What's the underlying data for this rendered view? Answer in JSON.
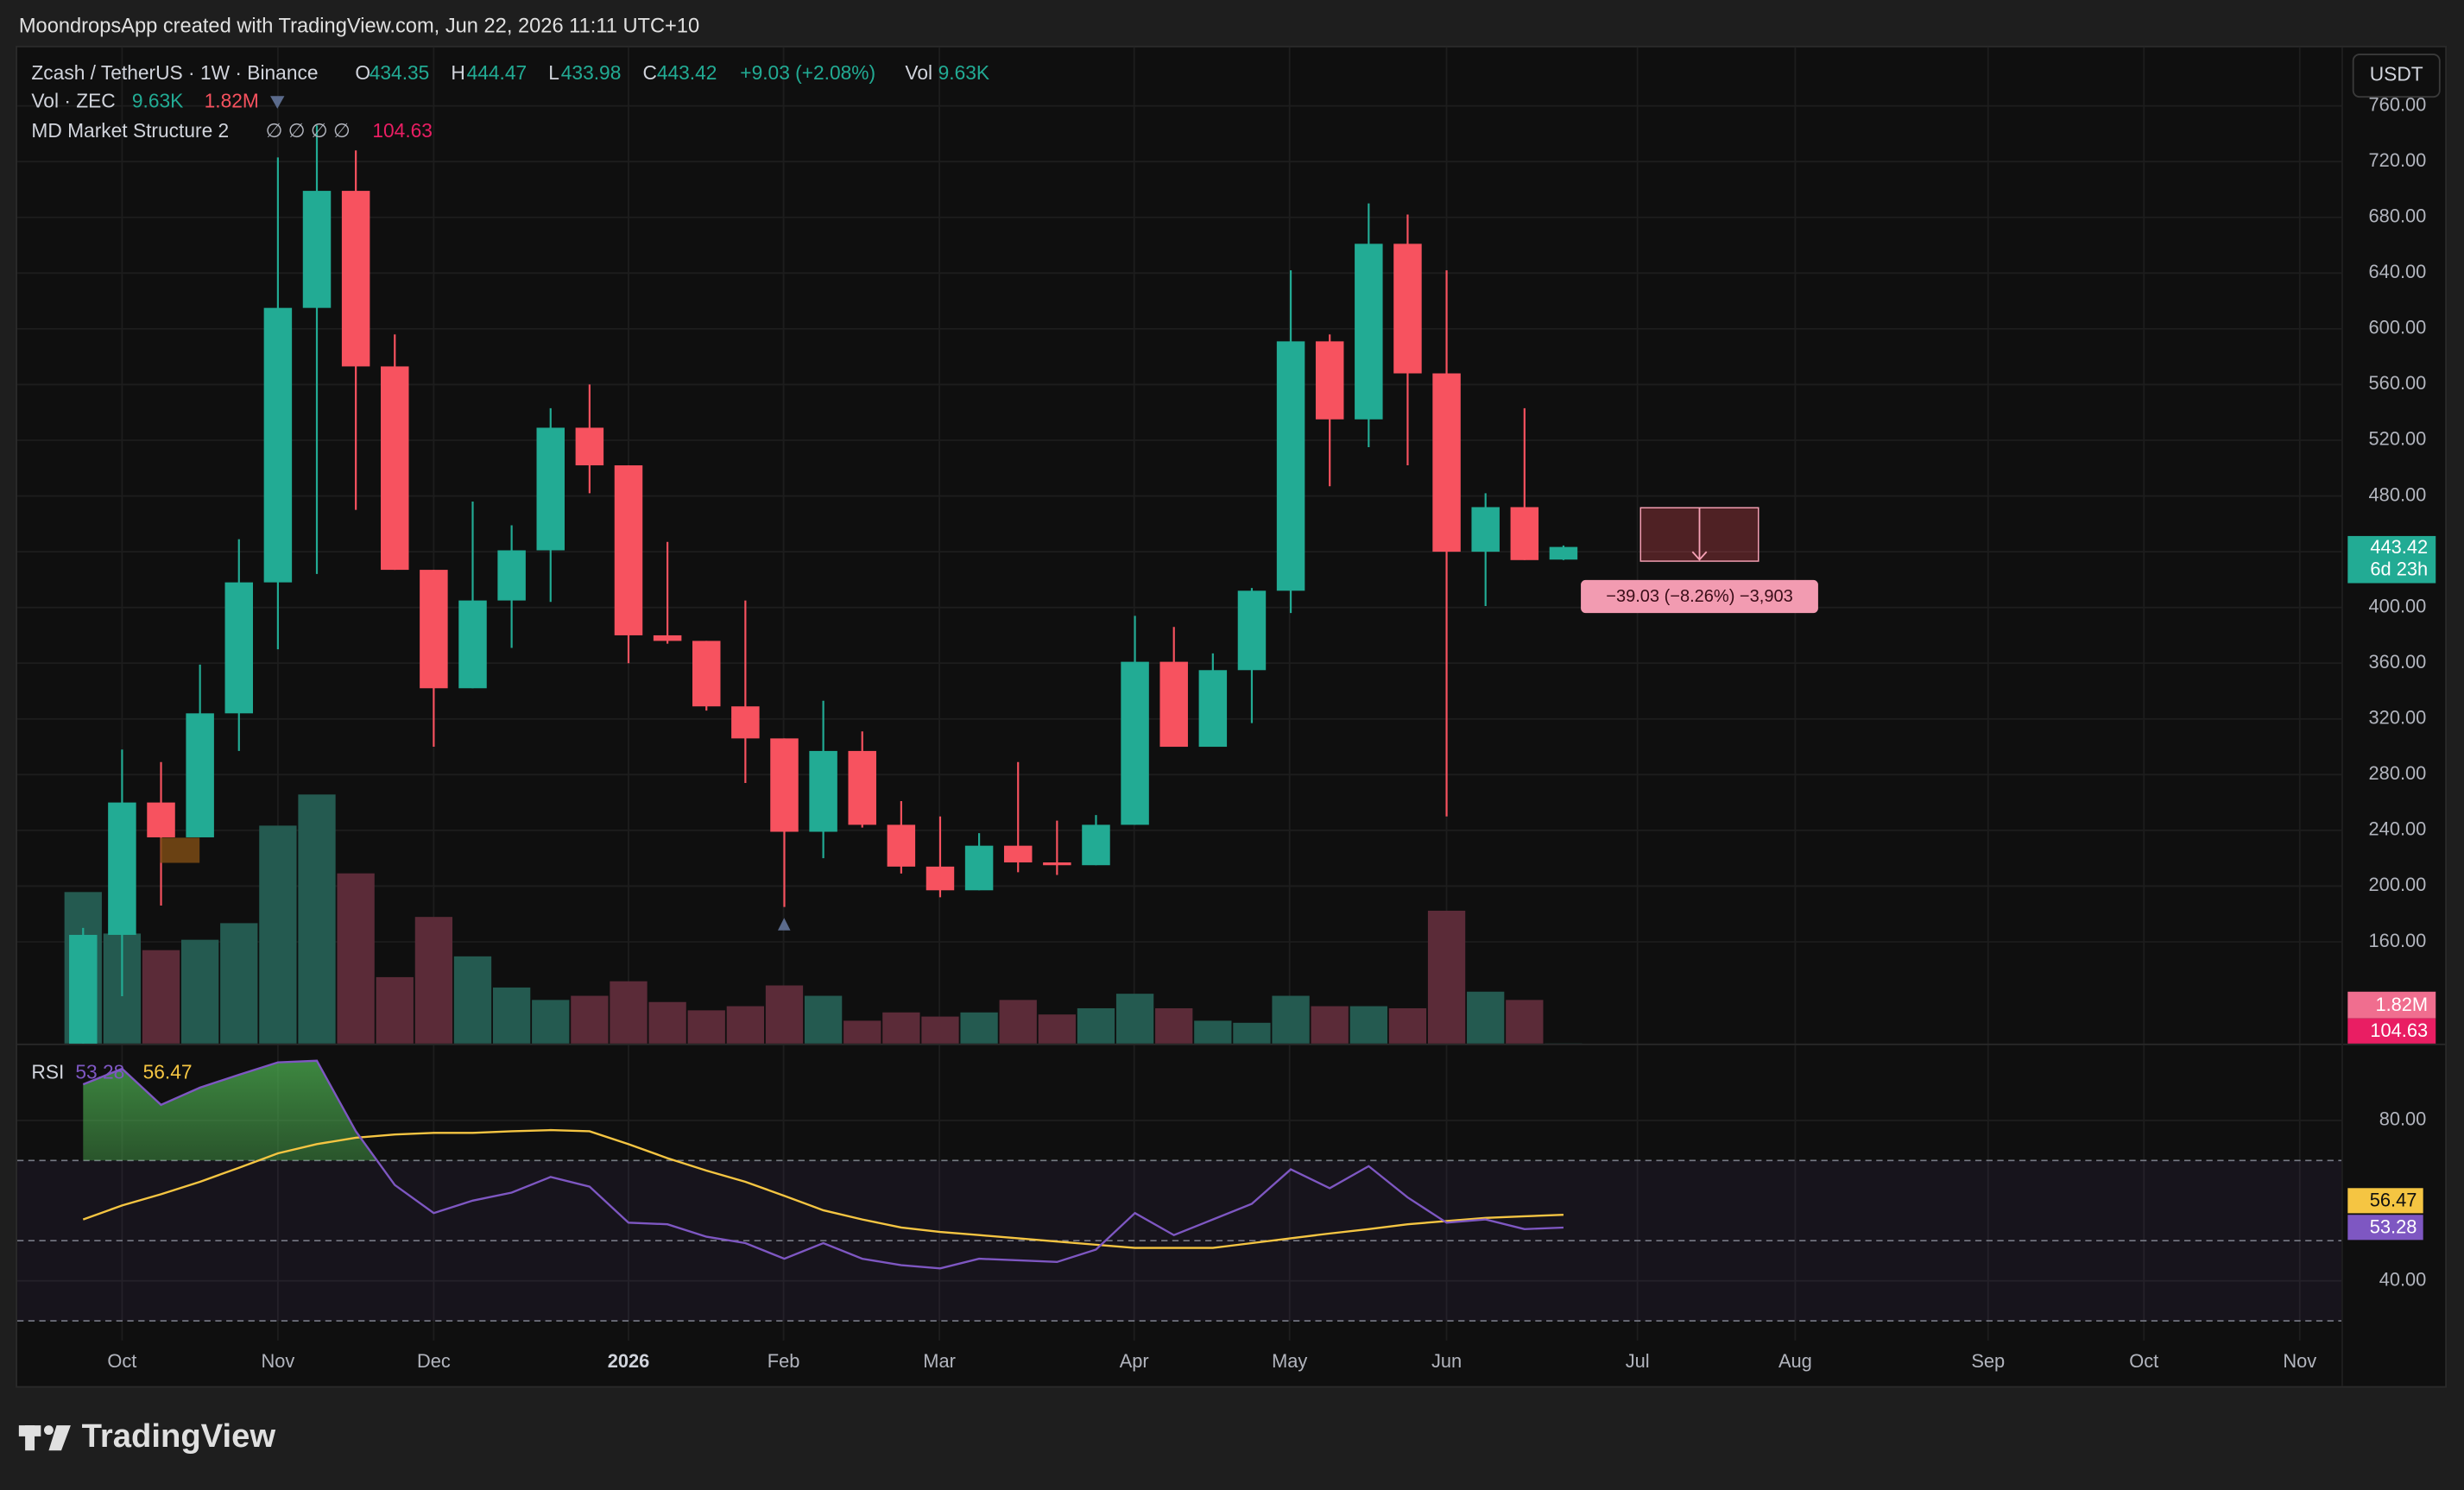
{
  "title_bar": "MoondropsApp created with TradingView.com, Jun 22, 2026 11:11 UTC+10",
  "brand": "TradingView",
  "currency_button": "USDT",
  "legend": {
    "symbol": "Zcash / TetherUS · 1W · Binance",
    "open_key": "O",
    "high_key": "H",
    "low_key": "L",
    "close_key": "C",
    "change": "+9.03 (+2.08%)",
    "volume_key": "Vol",
    "volume_value": "9.63K"
  },
  "volume_legend": {
    "name": "Vol · ZEC",
    "value": "9.63K",
    "ma_value": "1.82M"
  },
  "structure_legend": {
    "name": "MD Market Structure 2",
    "placeholders": "∅ ∅ ∅ ∅",
    "value": "104.63"
  },
  "countdown": "6d 23h",
  "measure_label": "−39.03 (−8.26%) −3,903",
  "chart_data": {
    "type": "candlestick",
    "up_color": "#22ab94",
    "down_color": "#f7525f",
    "volume_up_color": "#245a50",
    "volume_down_color": "#5b2b38",
    "open": [
      85,
      165,
      260,
      235,
      324,
      418,
      615,
      699,
      573,
      427,
      342,
      405,
      441,
      529,
      502,
      380,
      376,
      329,
      306,
      239,
      297,
      244,
      214,
      197,
      229,
      217,
      215,
      244,
      361,
      300,
      355,
      412,
      591,
      535,
      661,
      568,
      440,
      472,
      434.35
    ],
    "high": [
      170,
      298,
      289,
      359,
      449,
      723,
      746,
      728,
      596,
      427,
      476,
      459,
      543,
      560,
      502,
      447,
      376,
      405,
      306,
      333,
      311,
      261,
      250,
      238,
      289,
      247,
      251,
      394,
      386,
      367,
      414,
      642,
      596,
      690,
      682,
      642,
      482,
      543,
      444.47
    ],
    "low": [
      80,
      121,
      186,
      235,
      297,
      370,
      424,
      470,
      427,
      300,
      342,
      371,
      404,
      482,
      360,
      374,
      326,
      274,
      185,
      220,
      242,
      209,
      192,
      197,
      210,
      208,
      215,
      244,
      300,
      300,
      317,
      396,
      487,
      515,
      502,
      250,
      401,
      434,
      433.98
    ],
    "close": [
      165,
      260,
      235,
      324,
      418,
      615,
      699,
      573,
      427,
      342,
      405,
      441,
      529,
      502,
      380,
      376,
      329,
      306,
      239,
      297,
      244,
      214,
      197,
      229,
      217,
      215,
      244,
      361,
      300,
      355,
      412,
      591,
      535,
      661,
      568,
      440,
      472,
      434,
      443.42
    ],
    "volume": [
      7.3,
      5.3,
      4.5,
      5.0,
      5.8,
      10.5,
      12.0,
      8.2,
      3.2,
      6.1,
      4.2,
      2.7,
      2.1,
      2.3,
      3.0,
      2.0,
      1.6,
      1.8,
      2.8,
      2.3,
      1.1,
      1.5,
      1.3,
      1.5,
      2.1,
      1.4,
      1.7,
      2.4,
      1.7,
      1.1,
      1.0,
      2.3,
      1.8,
      1.8,
      1.7,
      6.4,
      2.5,
      2.1,
      0.00963
    ],
    "volume_ylim": [
      0,
      48
    ],
    "ylim": [
      87,
      802
    ],
    "yticks": [
      {
        "value": 160,
        "label": "160.00"
      },
      {
        "value": 200,
        "label": "200.00"
      },
      {
        "value": 240,
        "label": "240.00"
      },
      {
        "value": 280,
        "label": "280.00"
      },
      {
        "value": 320,
        "label": "320.00"
      },
      {
        "value": 360,
        "label": "360.00"
      },
      {
        "value": 400,
        "label": "400.00"
      },
      {
        "value": 440,
        "label": "440.00"
      },
      {
        "value": 480,
        "label": "480.00"
      },
      {
        "value": 520,
        "label": "520.00"
      },
      {
        "value": 560,
        "label": "560.00"
      },
      {
        "value": 600,
        "label": "600.00"
      },
      {
        "value": 640,
        "label": "640.00"
      },
      {
        "value": 680,
        "label": "680.00"
      },
      {
        "value": 720,
        "label": "720.00"
      },
      {
        "value": 760,
        "label": "760.00"
      }
    ],
    "xlim": [
      -1.69,
      57.97
    ],
    "xticks": [
      {
        "value": 1.0,
        "label": "Oct"
      },
      {
        "value": 5.0,
        "label": "Nov"
      },
      {
        "value": 9.0,
        "label": "Dec"
      },
      {
        "value": 14.0,
        "label": "2026"
      },
      {
        "value": 17.98,
        "label": "Feb"
      },
      {
        "value": 21.98,
        "label": "Mar"
      },
      {
        "value": 26.98,
        "label": "Apr"
      },
      {
        "value": 30.97,
        "label": "May"
      },
      {
        "value": 35.0,
        "label": "Jun"
      },
      {
        "value": 39.9,
        "label": "Jul"
      },
      {
        "value": 43.95,
        "label": "Aug"
      },
      {
        "value": 48.9,
        "label": "Sep"
      },
      {
        "value": 52.9,
        "label": "Oct"
      },
      {
        "value": 56.9,
        "label": "Nov"
      }
    ],
    "grid": true,
    "rsi": {
      "name": "RSI",
      "color": "#7e57c2",
      "ma_color": "#f5c542",
      "band_color": "#7e57c2",
      "values": [
        89.0,
        92.9,
        83.9,
        88.2,
        91.4,
        94.5,
        94.9,
        77.3,
        63.9,
        56.9,
        60.0,
        62.0,
        65.9,
        63.5,
        54.5,
        54.1,
        51.0,
        49.4,
        45.5,
        49.4,
        45.5,
        43.9,
        43.1,
        45.5,
        45.1,
        44.7,
        47.8,
        56.9,
        51.4,
        55.3,
        59.2,
        67.8,
        63.1,
        68.6,
        60.8,
        54.5,
        55.3,
        52.9,
        53.28
      ],
      "ma": [
        55.3,
        58.8,
        61.6,
        64.7,
        68.2,
        71.8,
        74.1,
        75.7,
        76.5,
        76.9,
        76.9,
        77.3,
        77.6,
        77.3,
        74.1,
        70.6,
        67.5,
        64.7,
        61.2,
        57.6,
        55.3,
        53.3,
        52.2,
        51.4,
        50.6,
        49.8,
        49.0,
        48.2,
        48.2,
        48.2,
        49.4,
        50.6,
        51.8,
        52.9,
        54.1,
        54.9,
        55.7,
        56.1,
        56.47
      ],
      "ylim": [
        25.1,
        98.8
      ],
      "yticks": [
        {
          "value": 80,
          "label": "80.00"
        },
        {
          "value": 40,
          "label": "40.00"
        }
      ],
      "levels": [
        70,
        50,
        30
      ]
    }
  }
}
